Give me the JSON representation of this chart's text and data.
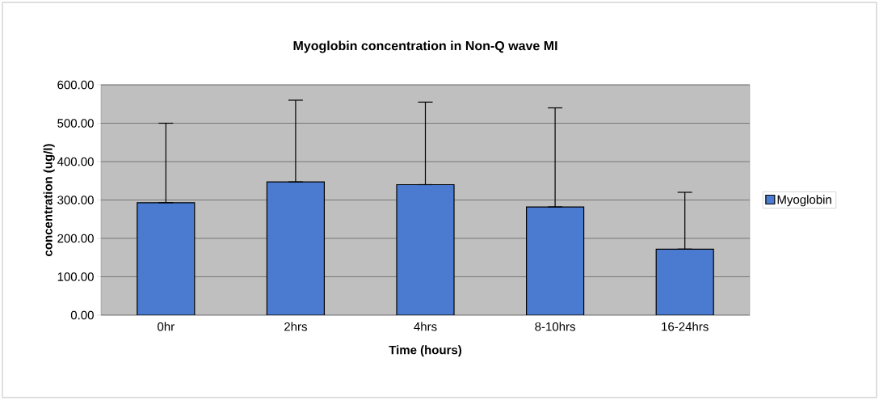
{
  "chart_data": {
    "type": "bar",
    "title": "Myoglobin concentration in Non-Q wave MI",
    "xlabel": "Time (hours)",
    "ylabel": "concentration (ug/l)",
    "categories": [
      "0hr",
      "2hrs",
      "4hrs",
      "8-10hrs",
      "16-24hrs"
    ],
    "series": [
      {
        "name": "Myoglobin",
        "color": "#4a7bd0",
        "values": [
          293,
          347,
          340,
          282,
          172
        ],
        "errors": [
          [
            293,
            500
          ],
          [
            347,
            560
          ],
          [
            340,
            555
          ],
          [
            282,
            540
          ],
          [
            172,
            320
          ]
        ]
      }
    ],
    "ylim": [
      0,
      600
    ],
    "yticks": [
      {
        "value": 0,
        "label": "0.00"
      },
      {
        "value": 100,
        "label": "100.00"
      },
      {
        "value": 200,
        "label": "200.00"
      },
      {
        "value": 300,
        "label": "300.00"
      },
      {
        "value": 400,
        "label": "400.00"
      },
      {
        "value": 500,
        "label": "500.00"
      },
      {
        "value": 600,
        "label": "600.00"
      }
    ],
    "grid": "y",
    "legend": "right"
  }
}
